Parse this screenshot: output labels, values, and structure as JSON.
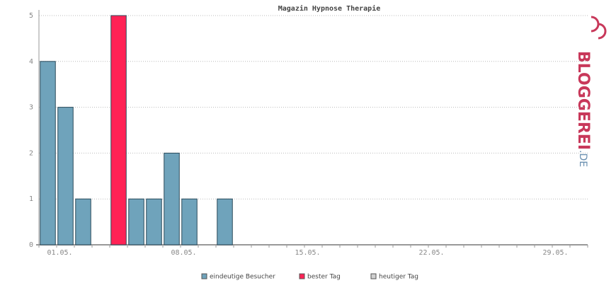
{
  "chart_data": {
    "type": "bar",
    "title": "Magazin Hypnose Therapie",
    "categories": [
      "01.05.",
      null,
      null,
      null,
      null,
      null,
      null,
      "08.05.",
      null,
      null,
      null,
      null,
      null,
      null,
      "15.05.",
      null,
      null,
      null,
      null,
      null,
      null,
      "22.05.",
      null,
      null,
      null,
      null,
      null,
      null,
      "29.05.",
      null,
      null
    ],
    "series": [
      {
        "name": "eindeutige Besucher",
        "color": "#6fa3bb",
        "values": [
          4,
          3,
          1,
          0,
          null,
          1,
          1,
          2,
          1,
          0,
          1,
          0,
          0,
          0,
          0,
          0,
          0,
          0,
          0,
          0,
          0,
          0,
          0,
          0,
          0,
          0,
          0,
          0,
          0,
          0,
          0
        ]
      },
      {
        "name": "bester Tag",
        "color": "#ff2255",
        "values": [
          null,
          null,
          null,
          null,
          5,
          null,
          null,
          null,
          null,
          null,
          null,
          null,
          null,
          null,
          null,
          null,
          null,
          null,
          null,
          null,
          null,
          null,
          null,
          null,
          null,
          null,
          null,
          null,
          null,
          null,
          null
        ]
      },
      {
        "name": "heutiger Tag",
        "color": "#d0d0d0",
        "values": [
          null,
          null,
          null,
          null,
          null,
          null,
          null,
          null,
          null,
          null,
          null,
          null,
          null,
          null,
          null,
          null,
          null,
          null,
          null,
          null,
          null,
          null,
          null,
          null,
          null,
          null,
          null,
          null,
          null,
          null,
          null
        ]
      }
    ],
    "ylim": [
      0,
      5
    ],
    "yticks": [
      0,
      1,
      2,
      3,
      4,
      5
    ],
    "grid": true
  },
  "logo": {
    "main": "BLOGGEREI",
    "suffix": ".DE"
  }
}
